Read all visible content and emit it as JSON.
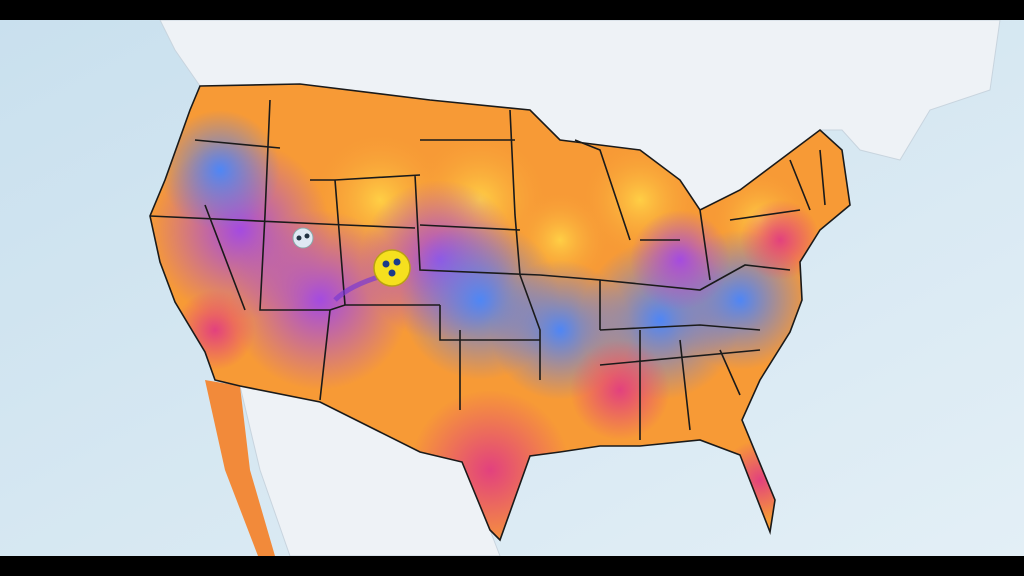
{
  "map": {
    "colors": {
      "ocean": "#d5e7f1",
      "land_outside": "#eef2f6",
      "heat_orange": "#f79a36",
      "heat_yellow": "#ffcf45",
      "heat_pink": "#e2417e",
      "heat_purple": "#a44be0",
      "heat_blue": "#5a7cf0",
      "borders": "#1a1a1a",
      "letterbox": "#000000"
    },
    "markers": [
      {
        "icon": "storm-center-icon",
        "color": "#dfe8f4"
      },
      {
        "icon": "storm-center-icon",
        "color": "#f5e01e"
      }
    ]
  }
}
